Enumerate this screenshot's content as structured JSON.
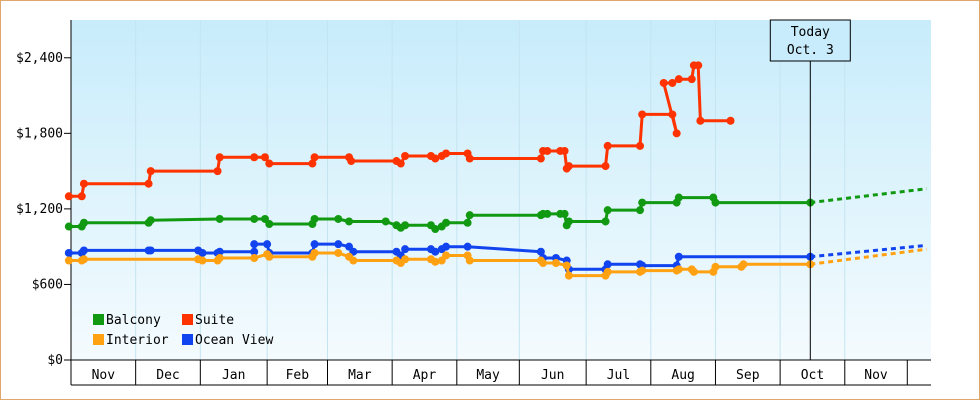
{
  "chart_data": {
    "type": "line",
    "step": true,
    "ylim": [
      0,
      2700
    ],
    "yticks": [
      0,
      600,
      1200,
      1800,
      2400
    ],
    "ytick_labels": [
      "$0",
      "$600",
      "$1,200",
      "$1,800",
      "$2,400"
    ],
    "grid": "vertical month separators",
    "background": "gradient light blue",
    "months": [
      "Nov",
      "Dec",
      "Jan",
      "Feb",
      "Mar",
      "Apr",
      "May",
      "Jun",
      "Jul",
      "Aug",
      "Sep",
      "Oct",
      "Nov"
    ],
    "month_starts": [
      "2023-10-26",
      "2023-11-25",
      "2023-12-25",
      "2024-01-25",
      "2024-02-22",
      "2024-03-23",
      "2024-04-22",
      "2024-05-21",
      "2024-06-21",
      "2024-07-21",
      "2024-08-20",
      "2024-09-19",
      "2024-10-19",
      "2024-11-17"
    ],
    "today": {
      "date": "2024-10-03",
      "label_line1": "Today",
      "label_line2": "Oct. 3"
    },
    "legend": {
      "placement": "bottom-left"
    },
    "series": [
      {
        "name": "Suite",
        "color": "#ff3300",
        "points": [
          [
            "2023-10-25",
            1300
          ],
          [
            "2023-10-31",
            1300
          ],
          [
            "2023-11-01",
            1400
          ],
          [
            "2023-12-01",
            1400
          ],
          [
            "2023-12-02",
            1500
          ],
          [
            "2024-01-02",
            1500
          ],
          [
            "2024-01-03",
            1610
          ],
          [
            "2024-01-19",
            1610
          ],
          [
            "2024-01-24",
            1610
          ],
          [
            "2024-01-26",
            1560
          ],
          [
            "2024-02-15",
            1560
          ],
          [
            "2024-02-16",
            1610
          ],
          [
            "2024-03-03",
            1610
          ],
          [
            "2024-03-04",
            1580
          ],
          [
            "2024-03-25",
            1580
          ],
          [
            "2024-03-27",
            1560
          ],
          [
            "2024-03-29",
            1620
          ],
          [
            "2024-04-10",
            1620
          ],
          [
            "2024-04-12",
            1600
          ],
          [
            "2024-04-15",
            1620
          ],
          [
            "2024-04-17",
            1640
          ],
          [
            "2024-04-27",
            1640
          ],
          [
            "2024-04-28",
            1600
          ],
          [
            "2024-05-31",
            1600
          ],
          [
            "2024-06-01",
            1660
          ],
          [
            "2024-06-03",
            1660
          ],
          [
            "2024-06-09",
            1660
          ],
          [
            "2024-06-11",
            1660
          ],
          [
            "2024-06-12",
            1520
          ],
          [
            "2024-06-13",
            1540
          ],
          [
            "2024-06-30",
            1540
          ],
          [
            "2024-07-01",
            1700
          ],
          [
            "2024-07-16",
            1700
          ],
          [
            "2024-07-17",
            1950
          ],
          [
            "2024-07-31",
            1950
          ],
          [
            "2024-08-02",
            1800
          ],
          [
            "2024-07-27",
            2200
          ],
          [
            "2024-07-31",
            2200
          ],
          [
            "2024-08-03",
            2230
          ],
          [
            "2024-08-09",
            2230
          ],
          [
            "2024-08-10",
            2340
          ],
          [
            "2024-08-12",
            2340
          ],
          [
            "2024-08-13",
            1900
          ],
          [
            "2024-08-27",
            1900
          ]
        ]
      },
      {
        "name": "Balcony",
        "color": "#119911",
        "points": [
          [
            "2023-10-25",
            1060
          ],
          [
            "2023-10-31",
            1060
          ],
          [
            "2023-11-01",
            1090
          ],
          [
            "2023-12-01",
            1090
          ],
          [
            "2023-12-02",
            1110
          ],
          [
            "2024-01-03",
            1120
          ],
          [
            "2024-01-19",
            1120
          ],
          [
            "2024-01-24",
            1120
          ],
          [
            "2024-01-26",
            1080
          ],
          [
            "2024-02-15",
            1080
          ],
          [
            "2024-02-16",
            1120
          ],
          [
            "2024-02-27",
            1120
          ],
          [
            "2024-03-03",
            1100
          ],
          [
            "2024-03-20",
            1100
          ],
          [
            "2024-03-25",
            1070
          ],
          [
            "2024-03-27",
            1050
          ],
          [
            "2024-03-29",
            1070
          ],
          [
            "2024-04-10",
            1070
          ],
          [
            "2024-04-12",
            1040
          ],
          [
            "2024-04-15",
            1060
          ],
          [
            "2024-04-17",
            1090
          ],
          [
            "2024-04-27",
            1090
          ],
          [
            "2024-04-28",
            1150
          ],
          [
            "2024-05-31",
            1150
          ],
          [
            "2024-06-01",
            1160
          ],
          [
            "2024-06-03",
            1160
          ],
          [
            "2024-06-09",
            1160
          ],
          [
            "2024-06-11",
            1160
          ],
          [
            "2024-06-12",
            1070
          ],
          [
            "2024-06-13",
            1100
          ],
          [
            "2024-06-30",
            1100
          ],
          [
            "2024-07-01",
            1190
          ],
          [
            "2024-07-16",
            1190
          ],
          [
            "2024-07-17",
            1250
          ],
          [
            "2024-08-02",
            1250
          ],
          [
            "2024-08-03",
            1290
          ],
          [
            "2024-08-19",
            1290
          ],
          [
            "2024-08-20",
            1250
          ],
          [
            "2024-10-03",
            1250
          ]
        ],
        "projection": [
          [
            "2024-10-03",
            1250
          ],
          [
            "2024-11-26",
            1360
          ]
        ]
      },
      {
        "name": "Ocean View",
        "color": "#1144ee",
        "points": [
          [
            "2023-10-25",
            850
          ],
          [
            "2023-10-31",
            850
          ],
          [
            "2023-11-01",
            870
          ],
          [
            "2023-12-01",
            870
          ],
          [
            "2023-12-02",
            870
          ],
          [
            "2023-12-24",
            870
          ],
          [
            "2023-12-26",
            850
          ],
          [
            "2024-01-02",
            850
          ],
          [
            "2024-01-03",
            860
          ],
          [
            "2024-01-19",
            860
          ],
          [
            "2024-01-19",
            920
          ],
          [
            "2024-01-25",
            920
          ],
          [
            "2024-01-26",
            850
          ],
          [
            "2024-02-15",
            850
          ],
          [
            "2024-02-16",
            920
          ],
          [
            "2024-02-27",
            920
          ],
          [
            "2024-03-03",
            900
          ],
          [
            "2024-03-05",
            860
          ],
          [
            "2024-03-25",
            860
          ],
          [
            "2024-03-27",
            830
          ],
          [
            "2024-03-29",
            880
          ],
          [
            "2024-04-10",
            880
          ],
          [
            "2024-04-12",
            860
          ],
          [
            "2024-04-15",
            880
          ],
          [
            "2024-04-17",
            900
          ],
          [
            "2024-04-27",
            900
          ],
          [
            "2024-05-31",
            860
          ],
          [
            "2024-06-01",
            810
          ],
          [
            "2024-06-07",
            810
          ],
          [
            "2024-06-12",
            790
          ],
          [
            "2024-06-13",
            720
          ],
          [
            "2024-06-30",
            720
          ],
          [
            "2024-07-01",
            760
          ],
          [
            "2024-07-16",
            760
          ],
          [
            "2024-07-17",
            750
          ],
          [
            "2024-08-02",
            750
          ],
          [
            "2024-08-03",
            820
          ],
          [
            "2024-10-03",
            820
          ]
        ],
        "projection": [
          [
            "2024-10-03",
            820
          ],
          [
            "2024-11-26",
            910
          ]
        ]
      },
      {
        "name": "Interior",
        "color": "#ffa111",
        "points": [
          [
            "2023-10-25",
            790
          ],
          [
            "2023-10-31",
            790
          ],
          [
            "2023-11-01",
            800
          ],
          [
            "2023-12-24",
            800
          ],
          [
            "2023-12-26",
            790
          ],
          [
            "2024-01-02",
            790
          ],
          [
            "2024-01-03",
            810
          ],
          [
            "2024-01-19",
            810
          ],
          [
            "2024-01-25",
            840
          ],
          [
            "2024-01-26",
            820
          ],
          [
            "2024-02-15",
            820
          ],
          [
            "2024-02-16",
            850
          ],
          [
            "2024-02-27",
            850
          ],
          [
            "2024-03-03",
            820
          ],
          [
            "2024-03-05",
            790
          ],
          [
            "2024-03-25",
            790
          ],
          [
            "2024-03-27",
            770
          ],
          [
            "2024-03-29",
            800
          ],
          [
            "2024-04-10",
            800
          ],
          [
            "2024-04-12",
            780
          ],
          [
            "2024-04-15",
            790
          ],
          [
            "2024-04-17",
            830
          ],
          [
            "2024-04-27",
            830
          ],
          [
            "2024-04-28",
            790
          ],
          [
            "2024-05-31",
            790
          ],
          [
            "2024-06-01",
            770
          ],
          [
            "2024-06-07",
            770
          ],
          [
            "2024-06-12",
            750
          ],
          [
            "2024-06-13",
            670
          ],
          [
            "2024-06-30",
            670
          ],
          [
            "2024-07-01",
            700
          ],
          [
            "2024-07-16",
            700
          ],
          [
            "2024-07-17",
            710
          ],
          [
            "2024-08-02",
            710
          ],
          [
            "2024-08-03",
            720
          ],
          [
            "2024-08-09",
            720
          ],
          [
            "2024-08-10",
            700
          ],
          [
            "2024-08-19",
            700
          ],
          [
            "2024-08-20",
            740
          ],
          [
            "2024-09-01",
            740
          ],
          [
            "2024-09-02",
            760
          ],
          [
            "2024-10-03",
            760
          ]
        ],
        "projection": [
          [
            "2024-10-03",
            760
          ],
          [
            "2024-11-26",
            880
          ]
        ]
      }
    ],
    "legend_entries": [
      "Balcony",
      "Suite",
      "Interior",
      "Ocean View"
    ]
  }
}
